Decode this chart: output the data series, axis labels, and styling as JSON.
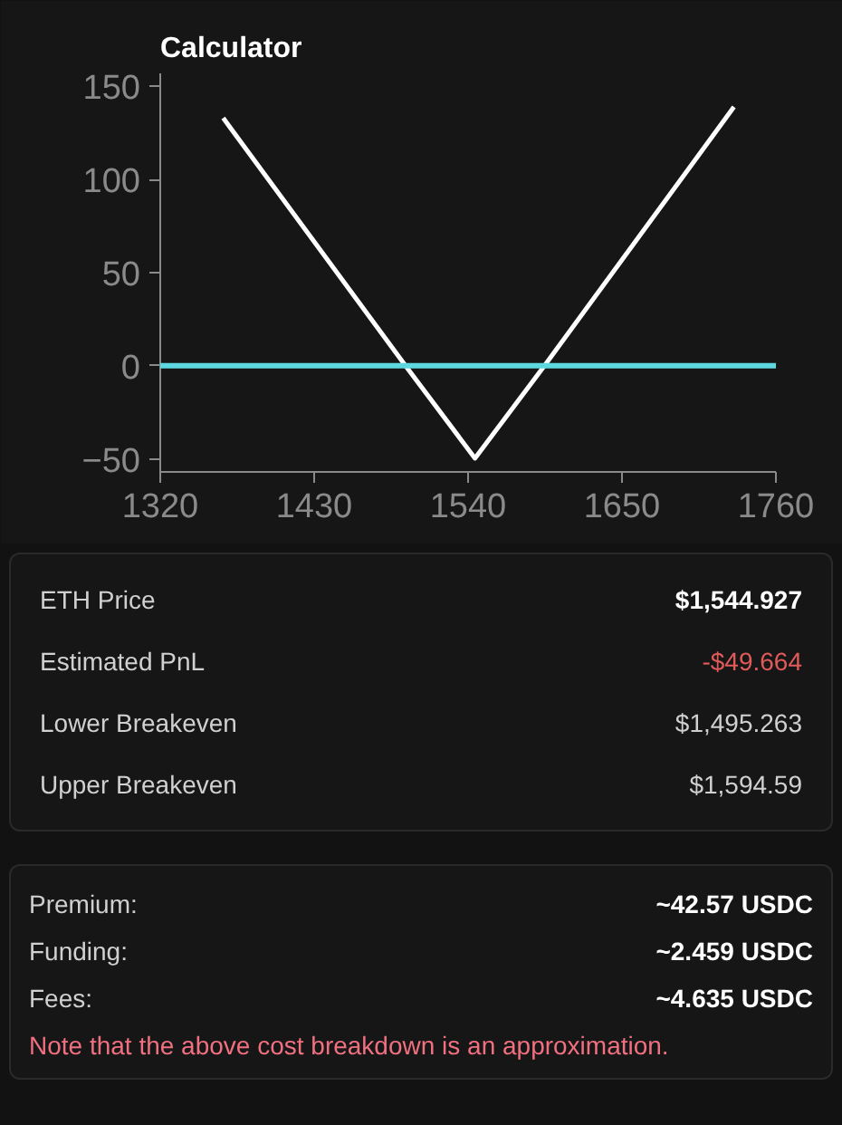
{
  "chart_data": {
    "type": "line",
    "title": "Calculator",
    "x": [
      1365,
      1495.263,
      1544.927,
      1594.59,
      1730
    ],
    "series": [
      {
        "color": "#ffffff",
        "values": [
          133,
          0,
          -49.664,
          0,
          139
        ]
      }
    ],
    "xlim": [
      1320,
      1760
    ],
    "xticks": [
      1320,
      1430,
      1540,
      1650,
      1760
    ],
    "ylim": [
      -57,
      157
    ],
    "yticks": [
      -50,
      0,
      50,
      100,
      150
    ],
    "grid": false,
    "marker": "none",
    "line_style": "solid",
    "ref_lines": [
      {
        "axis": "y",
        "value": 0,
        "color": "#5ed8e0"
      }
    ],
    "annotations": [
      "ETH Price",
      "$1,544.927",
      "Estimated PnL",
      "-$49.664",
      "Lower Breakeven",
      "$1,495.263",
      "Upper Breakeven",
      "$1,594.59",
      "Premium:",
      "~42.57 USDC",
      "Funding:",
      "~2.459 USDC",
      "Fees:",
      "~4.635 USDC",
      "Note that the above cost breakdown is an approximation."
    ]
  }
}
